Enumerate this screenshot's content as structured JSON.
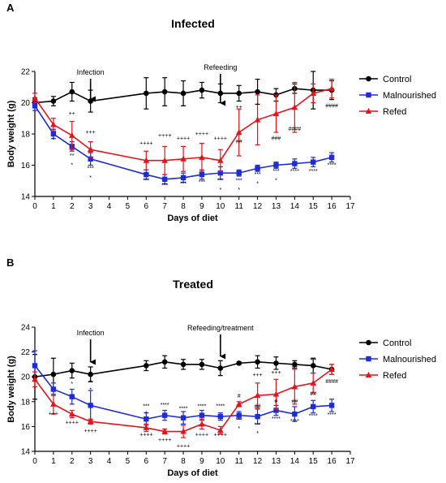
{
  "chart_data": [
    {
      "type": "line",
      "panel": "A",
      "title": "Infected",
      "xlabel": "Days of diet",
      "ylabel": "Body weight (g)",
      "xlim": [
        0,
        17
      ],
      "ylim": [
        14,
        22
      ],
      "xticks": [
        0,
        1,
        2,
        3,
        4,
        5,
        6,
        7,
        8,
        9,
        10,
        11,
        12,
        13,
        14,
        15,
        16,
        17
      ],
      "yticks": [
        14,
        16,
        18,
        20,
        22
      ],
      "grid": false,
      "legend_position": "right",
      "x": [
        0,
        1,
        2,
        3,
        6,
        7,
        8,
        9,
        10,
        11,
        12,
        13,
        14,
        15,
        16
      ],
      "series": [
        {
          "name": "Control",
          "color": "#000000",
          "marker": "circle",
          "values": [
            20.0,
            20.1,
            20.7,
            20.1,
            20.6,
            20.7,
            20.6,
            20.8,
            20.6,
            20.6,
            20.7,
            20.5,
            20.9,
            20.8,
            20.8
          ],
          "errors": [
            0.3,
            0.3,
            0.6,
            0.7,
            1.0,
            0.9,
            0.8,
            0.5,
            0.6,
            0.5,
            0.8,
            0.4,
            0.3,
            1.2,
            0.6
          ]
        },
        {
          "name": "Malnourished",
          "color": "#1f2bd6",
          "marker": "square",
          "values": [
            19.8,
            18.0,
            17.2,
            16.4,
            15.4,
            15.1,
            15.2,
            15.4,
            15.5,
            15.5,
            15.8,
            16.0,
            16.1,
            16.2,
            16.5
          ],
          "errors": [
            0.3,
            0.3,
            0.3,
            0.4,
            0.3,
            0.3,
            0.3,
            0.3,
            0.4,
            0.2,
            0.2,
            0.2,
            0.3,
            0.3,
            0.3
          ]
        },
        {
          "name": "Refed",
          "color": "#e3141c",
          "marker": "triangle",
          "values": [
            20.3,
            18.6,
            17.9,
            17.0,
            16.3,
            16.3,
            16.4,
            16.5,
            16.3,
            18.1,
            18.9,
            19.3,
            19.7,
            20.6,
            20.9
          ],
          "errors": [
            0.3,
            0.4,
            0.9,
            0.5,
            0.6,
            0.9,
            0.8,
            0.9,
            0.7,
            1.5,
            1.6,
            1.2,
            1.6,
            0.6,
            0.6
          ]
        }
      ],
      "annotations": [
        {
          "label": "Infection",
          "x": 3
        },
        {
          "label": "Refeeding",
          "x": 10
        }
      ],
      "significance": [
        {
          "text": "++",
          "x": 2,
          "y": 19.2
        },
        {
          "text": "+++",
          "x": 3,
          "y": 18.0
        },
        {
          "text": "++++",
          "x": 6,
          "y": 17.3
        },
        {
          "text": "++++",
          "x": 7,
          "y": 17.8
        },
        {
          "text": "++++",
          "x": 8,
          "y": 17.6
        },
        {
          "text": "++++",
          "x": 9,
          "y": 17.9
        },
        {
          "text": "++++",
          "x": 10,
          "y": 17.6
        },
        {
          "text": "++",
          "x": 11,
          "y": 19.6
        },
        {
          "text": "+",
          "x": 12,
          "y": 19.8
        },
        {
          "text": "##",
          "x": 11,
          "y": 17.4
        },
        {
          "text": "###",
          "x": 13,
          "y": 17.6
        },
        {
          "text": "####",
          "x": 14,
          "y": 18.2
        },
        {
          "text": "####",
          "x": 16,
          "y": 19.7
        },
        {
          "text": "*",
          "x": 1,
          "y": 17.5
        },
        {
          "text": "**",
          "x": 2,
          "y": 16.5
        },
        {
          "text": "*",
          "x": 2,
          "y": 15.9
        },
        {
          "text": "***",
          "x": 3,
          "y": 15.7
        },
        {
          "text": "*",
          "x": 3,
          "y": 15.1
        },
        {
          "text": "***",
          "x": 6,
          "y": 14.9
        },
        {
          "text": "***",
          "x": 7,
          "y": 14.6
        },
        {
          "text": "***",
          "x": 8,
          "y": 14.7
        },
        {
          "text": "***",
          "x": 9,
          "y": 14.8
        },
        {
          "text": "***",
          "x": 10,
          "y": 14.9
        },
        {
          "text": "*",
          "x": 10,
          "y": 14.3
        },
        {
          "text": "***",
          "x": 11,
          "y": 14.9
        },
        {
          "text": "*",
          "x": 11,
          "y": 14.3
        },
        {
          "text": "***",
          "x": 12,
          "y": 15.3
        },
        {
          "text": "*",
          "x": 12,
          "y": 14.7
        },
        {
          "text": "***",
          "x": 13,
          "y": 15.5
        },
        {
          "text": "*",
          "x": 13,
          "y": 14.9
        },
        {
          "text": "****",
          "x": 14,
          "y": 15.5
        },
        {
          "text": "****",
          "x": 15,
          "y": 15.5
        },
        {
          "text": "****",
          "x": 16,
          "y": 15.9
        }
      ]
    },
    {
      "type": "line",
      "panel": "B",
      "title": "Treated",
      "xlabel": "Days of diet",
      "ylabel": "Body weight (g)",
      "xlim": [
        0,
        17
      ],
      "ylim": [
        14,
        24
      ],
      "xticks": [
        0,
        1,
        2,
        3,
        4,
        5,
        6,
        7,
        8,
        9,
        10,
        11,
        12,
        13,
        14,
        15,
        16,
        17
      ],
      "yticks": [
        14,
        16,
        18,
        20,
        22,
        24
      ],
      "grid": false,
      "legend_position": "right",
      "x": [
        0,
        1,
        2,
        3,
        6,
        7,
        8,
        9,
        10,
        11,
        12,
        13,
        14,
        15,
        16
      ],
      "series": [
        {
          "name": "Control",
          "color": "#000000",
          "marker": "circle",
          "values": [
            20.0,
            20.2,
            20.5,
            20.2,
            20.9,
            21.2,
            21.0,
            21.0,
            20.7,
            21.1,
            21.2,
            21.1,
            21.0,
            20.9,
            20.6
          ],
          "errors": [
            1.8,
            1.3,
            0.6,
            0.6,
            0.4,
            0.5,
            0.4,
            0.4,
            0.6,
            0.1,
            0.5,
            0.5,
            0.3,
            0.6,
            0.4
          ]
        },
        {
          "name": "Malnourished",
          "color": "#1f2bd6",
          "marker": "square",
          "values": [
            20.9,
            19.0,
            18.4,
            17.7,
            16.6,
            16.9,
            16.7,
            16.9,
            16.8,
            16.9,
            16.8,
            17.3,
            17.0,
            17.6,
            17.7
          ],
          "errors": [
            1.2,
            0.5,
            0.6,
            1.2,
            0.5,
            0.4,
            0.5,
            0.4,
            0.3,
            0.3,
            0.6,
            0.4,
            0.6,
            0.5,
            0.5
          ]
        },
        {
          "name": "Refed",
          "color": "#e3141c",
          "marker": "triangle",
          "values": [
            19.8,
            17.8,
            17.0,
            16.4,
            15.9,
            15.6,
            15.6,
            16.2,
            15.7,
            17.8,
            18.5,
            18.6,
            19.2,
            19.5,
            20.6
          ],
          "errors": [
            0.6,
            0.8,
            0.3,
            0.2,
            0.3,
            0.2,
            0.5,
            0.4,
            0.3,
            0.2,
            1.0,
            1.2,
            1.4,
            0.8,
            0.4
          ]
        }
      ],
      "annotations": [
        {
          "label": "Infection",
          "x": 3
        },
        {
          "label": "Refeeding/treatment",
          "x": 10
        }
      ],
      "significance": [
        {
          "text": "*",
          "x": 2,
          "y": 19.3
        },
        {
          "text": "**",
          "x": 3,
          "y": 19.4
        },
        {
          "text": "*",
          "x": 3,
          "y": 18.8
        },
        {
          "text": "+++",
          "x": 1,
          "y": 16.9
        },
        {
          "text": "++++",
          "x": 2,
          "y": 16.2
        },
        {
          "text": "++++",
          "x": 3,
          "y": 15.5
        },
        {
          "text": "***",
          "x": 6,
          "y": 17.5
        },
        {
          "text": "*",
          "x": 6,
          "y": 16.9
        },
        {
          "text": "****",
          "x": 7,
          "y": 17.6
        },
        {
          "text": "****",
          "x": 8,
          "y": 17.3
        },
        {
          "text": "****",
          "x": 9,
          "y": 17.5
        },
        {
          "text": "****",
          "x": 10,
          "y": 17.5
        },
        {
          "text": "++++",
          "x": 6,
          "y": 15.2
        },
        {
          "text": "++++",
          "x": 7,
          "y": 14.8
        },
        {
          "text": "++++",
          "x": 8,
          "y": 14.3
        },
        {
          "text": "++++",
          "x": 9,
          "y": 15.2
        },
        {
          "text": "++++",
          "x": 10,
          "y": 15.2
        },
        {
          "text": "+++",
          "x": 12,
          "y": 20.0
        },
        {
          "text": "+++",
          "x": 13,
          "y": 20.2
        },
        {
          "text": "++",
          "x": 14,
          "y": 20.7
        },
        {
          "text": "++",
          "x": 15,
          "y": 21.3
        },
        {
          "text": "#",
          "x": 11,
          "y": 18.3
        },
        {
          "text": "##",
          "x": 12,
          "y": 17.5
        },
        {
          "text": "#",
          "x": 13,
          "y": 17.9
        },
        {
          "text": "##",
          "x": 14,
          "y": 17.9
        },
        {
          "text": "##",
          "x": 15,
          "y": 18.5
        },
        {
          "text": "####",
          "x": 16,
          "y": 19.5
        },
        {
          "text": "***",
          "x": 11,
          "y": 16.4
        },
        {
          "text": "*",
          "x": 11,
          "y": 15.7
        },
        {
          "text": "***",
          "x": 12,
          "y": 16.0
        },
        {
          "text": "*",
          "x": 12,
          "y": 15.3
        },
        {
          "text": "****",
          "x": 13,
          "y": 16.5
        },
        {
          "text": "****",
          "x": 14,
          "y": 16.3
        },
        {
          "text": "****",
          "x": 15,
          "y": 16.7
        },
        {
          "text": "****",
          "x": 16,
          "y": 16.8
        }
      ]
    }
  ]
}
